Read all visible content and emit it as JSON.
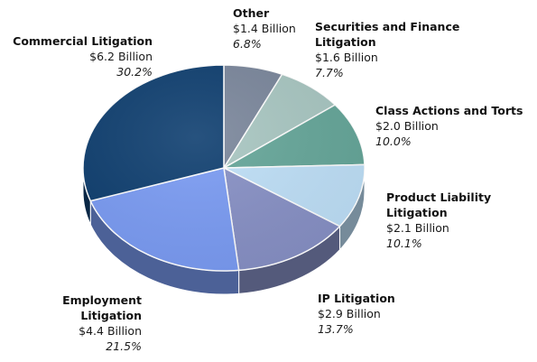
{
  "chart_data": {
    "type": "pie",
    "title": "",
    "legend": "none",
    "slices": [
      {
        "label": "Other",
        "amount": "$1.4 Billion",
        "percent_label": "6.8%",
        "value": 6.8,
        "color": "#7b879c"
      },
      {
        "label": "Securities and Finance\nLitigation",
        "amount": "$1.6 Billion",
        "percent_label": "7.7%",
        "value": 7.7,
        "color": "#a9c7c2"
      },
      {
        "label": "Class Actions and Torts",
        "amount": "$2.0 Billion",
        "percent_label": "10.0%",
        "value": 10.0,
        "color": "#66a79a"
      },
      {
        "label": "Product Liability Litigation",
        "amount": "$2.1 Billion",
        "percent_label": "10.1%",
        "value": 10.1,
        "color": "#bfe0f8"
      },
      {
        "label": "IP Litigation",
        "amount": "$2.9 Billion",
        "percent_label": "13.7%",
        "value": 13.7,
        "color": "#8891c6"
      },
      {
        "label": "Employment Litigation",
        "amount": "$4.4 Billion",
        "percent_label": "21.5%",
        "value": 21.5,
        "color": "#7b9cf4"
      },
      {
        "label": "Commercial Litigation",
        "amount": "$6.2 Billion",
        "percent_label": "30.2%",
        "value": 30.2,
        "color": "#0f3f70"
      }
    ]
  }
}
